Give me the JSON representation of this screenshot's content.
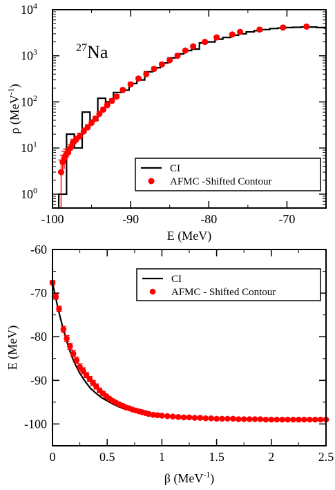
{
  "chart_data": [
    {
      "type": "line",
      "annotation": {
        "base": "Na",
        "superscript": "27"
      },
      "xlabel": "E (MeV)",
      "ylabel": {
        "base": "ρ (MeV",
        "superscript": "-1",
        "suffix": ")"
      },
      "xlim": [
        -100,
        -65
      ],
      "ylim": [
        0.5,
        10000
      ],
      "yscale": "log",
      "xticks": [
        -100,
        -90,
        -80,
        -70
      ],
      "xtick_labels": [
        "-100",
        "-90",
        "-80",
        "-70"
      ],
      "yticks": [
        1,
        10,
        100,
        1000,
        10000
      ],
      "ytick_labels": [
        {
          "base": "10",
          "superscript": "0"
        },
        {
          "base": "10",
          "superscript": "1"
        },
        {
          "base": "10",
          "superscript": "2"
        },
        {
          "base": "10",
          "superscript": "3"
        },
        {
          "base": "10",
          "superscript": "4"
        }
      ],
      "grid": false,
      "legend": {
        "placement": "bottom-right",
        "entries": [
          "CI",
          "AFMC -Shifted Contour"
        ]
      },
      "series": [
        {
          "name": "CI",
          "style": "step",
          "color": "#000000",
          "x": [
            -99.2,
            -98.2,
            -97.2,
            -96.2,
            -95.2,
            -94.2,
            -93.2,
            -92.2,
            -91.2,
            -90.2,
            -89.2,
            -88.2,
            -87.2,
            -86.2,
            -85.2,
            -84.2,
            -83.2,
            -82.2,
            -81.2,
            -80.2,
            -79.2,
            -78.2,
            -77.2,
            -76.2,
            -75.2,
            -74.2,
            -73.2,
            -72.2,
            -71.2,
            -70.2,
            -69.2,
            -68.2,
            -67.2,
            -66.2,
            -65.2
          ],
          "y": [
            1,
            20,
            10,
            60,
            40,
            120,
            100,
            160,
            180,
            250,
            300,
            450,
            550,
            700,
            900,
            1100,
            1300,
            1400,
            1900,
            2000,
            2300,
            2500,
            2800,
            3000,
            3300,
            3500,
            3700,
            3900,
            4000,
            4100,
            4150,
            4200,
            4200,
            4100,
            4000
          ]
        },
        {
          "name": "AFMC -Shifted Contour",
          "style": "markers-errorbars",
          "color": "#ff0000",
          "x": [
            -98.9,
            -98.7,
            -98.5,
            -98.3,
            -98.0,
            -97.7,
            -97.4,
            -97.0,
            -96.5,
            -96.0,
            -95.5,
            -95.0,
            -94.5,
            -94.0,
            -93.5,
            -93.0,
            -92.4,
            -91.8,
            -91.0,
            -90.0,
            -89.0,
            -88.0,
            -87.0,
            -86.0,
            -85.0,
            -84.0,
            -83.0,
            -82.0,
            -80.5,
            -79.0,
            -77.0,
            -76.0,
            -73.5,
            -70.5,
            -67.5
          ],
          "y": [
            3,
            5,
            6,
            7,
            8,
            10,
            13,
            15,
            18,
            23,
            28,
            35,
            43,
            55,
            68,
            85,
            105,
            130,
            180,
            240,
            320,
            400,
            520,
            650,
            800,
            1000,
            1300,
            1600,
            2000,
            2500,
            2900,
            3300,
            3700,
            4100,
            4300
          ],
          "yerr": [
            2.5,
            2,
            2.5,
            2.5,
            2,
            2,
            2.5,
            3,
            3,
            4,
            4,
            5,
            6,
            7,
            8,
            10,
            12,
            15,
            20,
            25,
            30,
            40,
            45,
            55,
            65,
            80,
            100,
            120,
            150,
            180,
            200,
            220,
            250,
            280,
            300
          ]
        }
      ]
    },
    {
      "type": "line",
      "xlabel": {
        "base": "β  (MeV",
        "superscript": "-1",
        "suffix": ")"
      },
      "ylabel": "E (MeV)",
      "xlim": [
        0,
        2.5
      ],
      "ylim": [
        -105,
        -60
      ],
      "xticks": [
        0,
        0.5,
        1,
        1.5,
        2,
        2.5
      ],
      "xtick_labels": [
        "0",
        "0.5",
        "1",
        "1.5",
        "2",
        "2.5"
      ],
      "yticks": [
        -100,
        -90,
        -80,
        -70,
        -60
      ],
      "ytick_labels": [
        "-100",
        "-90",
        "-80",
        "-70",
        "-60"
      ],
      "grid": false,
      "legend": {
        "placement": "top-right",
        "entries": [
          "CI",
          "AFMC - Shifted Contour"
        ]
      },
      "series": [
        {
          "name": "CI",
          "style": "line",
          "color": "#000000",
          "x": [
            0,
            0.025,
            0.05,
            0.075,
            0.1,
            0.125,
            0.15,
            0.175,
            0.2,
            0.225,
            0.25,
            0.3,
            0.35,
            0.4,
            0.45,
            0.5,
            0.55,
            0.6,
            0.65,
            0.7,
            0.75,
            0.8,
            0.9,
            1.0,
            1.1,
            1.2,
            1.3,
            1.4,
            1.5,
            1.6,
            1.7,
            1.8,
            1.9,
            2.0,
            2.1,
            2.2,
            2.3,
            2.4,
            2.5
          ],
          "y": [
            -67.6,
            -70.6,
            -73.4,
            -76.0,
            -78.4,
            -80.6,
            -82.6,
            -84.4,
            -85.9,
            -87.2,
            -88.4,
            -90.3,
            -91.9,
            -93.0,
            -94.0,
            -94.7,
            -95.4,
            -96.0,
            -96.5,
            -96.8,
            -97.1,
            -97.4,
            -97.8,
            -98.1,
            -98.3,
            -98.5,
            -98.6,
            -98.7,
            -98.8,
            -98.8,
            -98.9,
            -98.9,
            -98.9,
            -99.0,
            -99.0,
            -99.0,
            -99.0,
            -99.0,
            -99.0
          ]
        },
        {
          "name": "AFMC - Shifted Contour",
          "style": "markers-errorbars",
          "color": "#ff0000",
          "x": [
            0.0,
            0.03,
            0.06,
            0.1,
            0.13,
            0.16,
            0.19,
            0.22,
            0.25,
            0.28,
            0.31,
            0.34,
            0.37,
            0.4,
            0.43,
            0.46,
            0.49,
            0.52,
            0.55,
            0.58,
            0.61,
            0.64,
            0.67,
            0.7,
            0.73,
            0.76,
            0.79,
            0.82,
            0.85,
            0.88,
            0.92,
            0.96,
            1.0,
            1.05,
            1.1,
            1.15,
            1.2,
            1.25,
            1.3,
            1.35,
            1.4,
            1.45,
            1.5,
            1.55,
            1.6,
            1.65,
            1.7,
            1.75,
            1.8,
            1.85,
            1.9,
            1.95,
            2.0,
            2.05,
            2.1,
            2.15,
            2.2,
            2.25,
            2.3,
            2.35,
            2.4,
            2.45,
            2.5
          ],
          "y": [
            -67.6,
            -70.8,
            -73.6,
            -78.3,
            -80.4,
            -82.2,
            -83.9,
            -85.4,
            -86.9,
            -87.8,
            -88.8,
            -89.7,
            -90.6,
            -91.4,
            -92.3,
            -93.0,
            -93.6,
            -94.2,
            -94.7,
            -95.1,
            -95.5,
            -95.8,
            -96.2,
            -96.4,
            -96.7,
            -96.9,
            -97.1,
            -97.3,
            -97.5,
            -97.7,
            -97.9,
            -98.0,
            -98.1,
            -98.2,
            -98.3,
            -98.4,
            -98.5,
            -98.5,
            -98.6,
            -98.6,
            -98.7,
            -98.7,
            -98.8,
            -98.8,
            -98.8,
            -98.8,
            -98.9,
            -98.9,
            -98.9,
            -98.9,
            -98.9,
            -99.0,
            -99.0,
            -99.0,
            -99.0,
            -99.0,
            -99.0,
            -99.0,
            -99.0,
            -99.0,
            -99.0,
            -99.0,
            -99.0
          ],
          "yerr": [
            0.5,
            0.6,
            0.6,
            0.7,
            0.7,
            0.7,
            0.7,
            0.7,
            0.7,
            0.7,
            0.6,
            0.6,
            0.6,
            0.6,
            0.5,
            0.4,
            0.3,
            0.3,
            0.3,
            0.2,
            0.2,
            0.2,
            0.2,
            0.2,
            0.2,
            0.2,
            0.2,
            0.2,
            0.2,
            0.2,
            0.2,
            0.2,
            0.2,
            0.2,
            0.2,
            0.2,
            0.2,
            0.2,
            0.2,
            0.2,
            0.2,
            0.2,
            0.2,
            0.2,
            0.2,
            0.2,
            0.2,
            0.2,
            0.2,
            0.2,
            0.2,
            0.2,
            0.2,
            0.2,
            0.2,
            0.2,
            0.2,
            0.2,
            0.2,
            0.2,
            0.2,
            0.2,
            0.2
          ]
        }
      ]
    }
  ]
}
